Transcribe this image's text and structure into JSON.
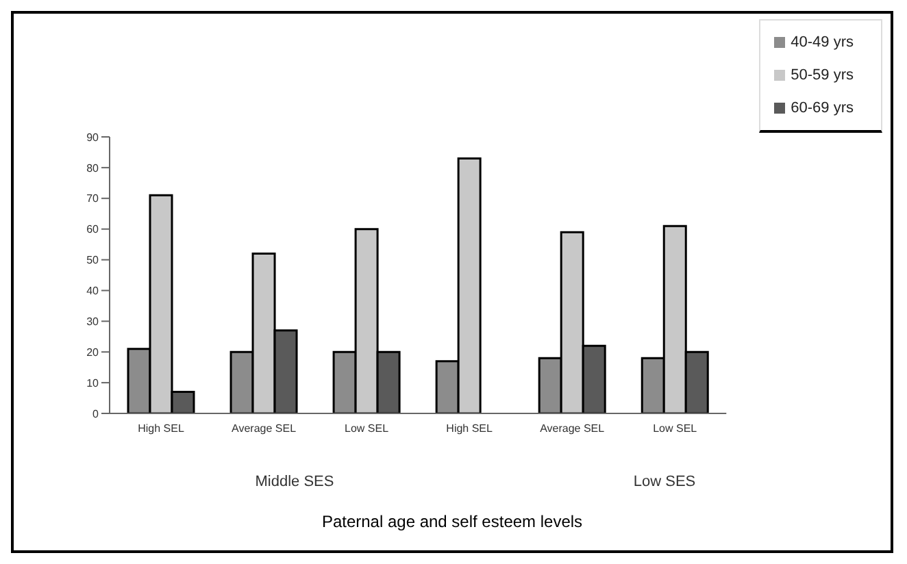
{
  "chart_data": {
    "type": "bar",
    "xlabel": "Paternal age and self esteem levels",
    "categories": [
      "High SEL",
      "Average SEL",
      "Low SEL",
      "High SEL",
      "Average SEL",
      "Low SEL"
    ],
    "series": [
      {
        "name": "40-49 yrs",
        "color": "#8c8c8c",
        "values": [
          21,
          20,
          20,
          17,
          18,
          18
        ]
      },
      {
        "name": "50-59 yrs",
        "color": "#c8c8c8",
        "values": [
          71,
          52,
          60,
          83,
          59,
          61
        ]
      },
      {
        "name": "60-69 yrs",
        "color": "#5a5a5a",
        "values": [
          7,
          27,
          20,
          null,
          22,
          20
        ]
      }
    ],
    "annotations": [
      "Middle SES",
      "Low SES"
    ],
    "ylim": [
      0,
      90
    ],
    "yticks": [
      0,
      10,
      20,
      30,
      40,
      50,
      60,
      70,
      80,
      90
    ],
    "grid": false,
    "legend": "top right"
  }
}
